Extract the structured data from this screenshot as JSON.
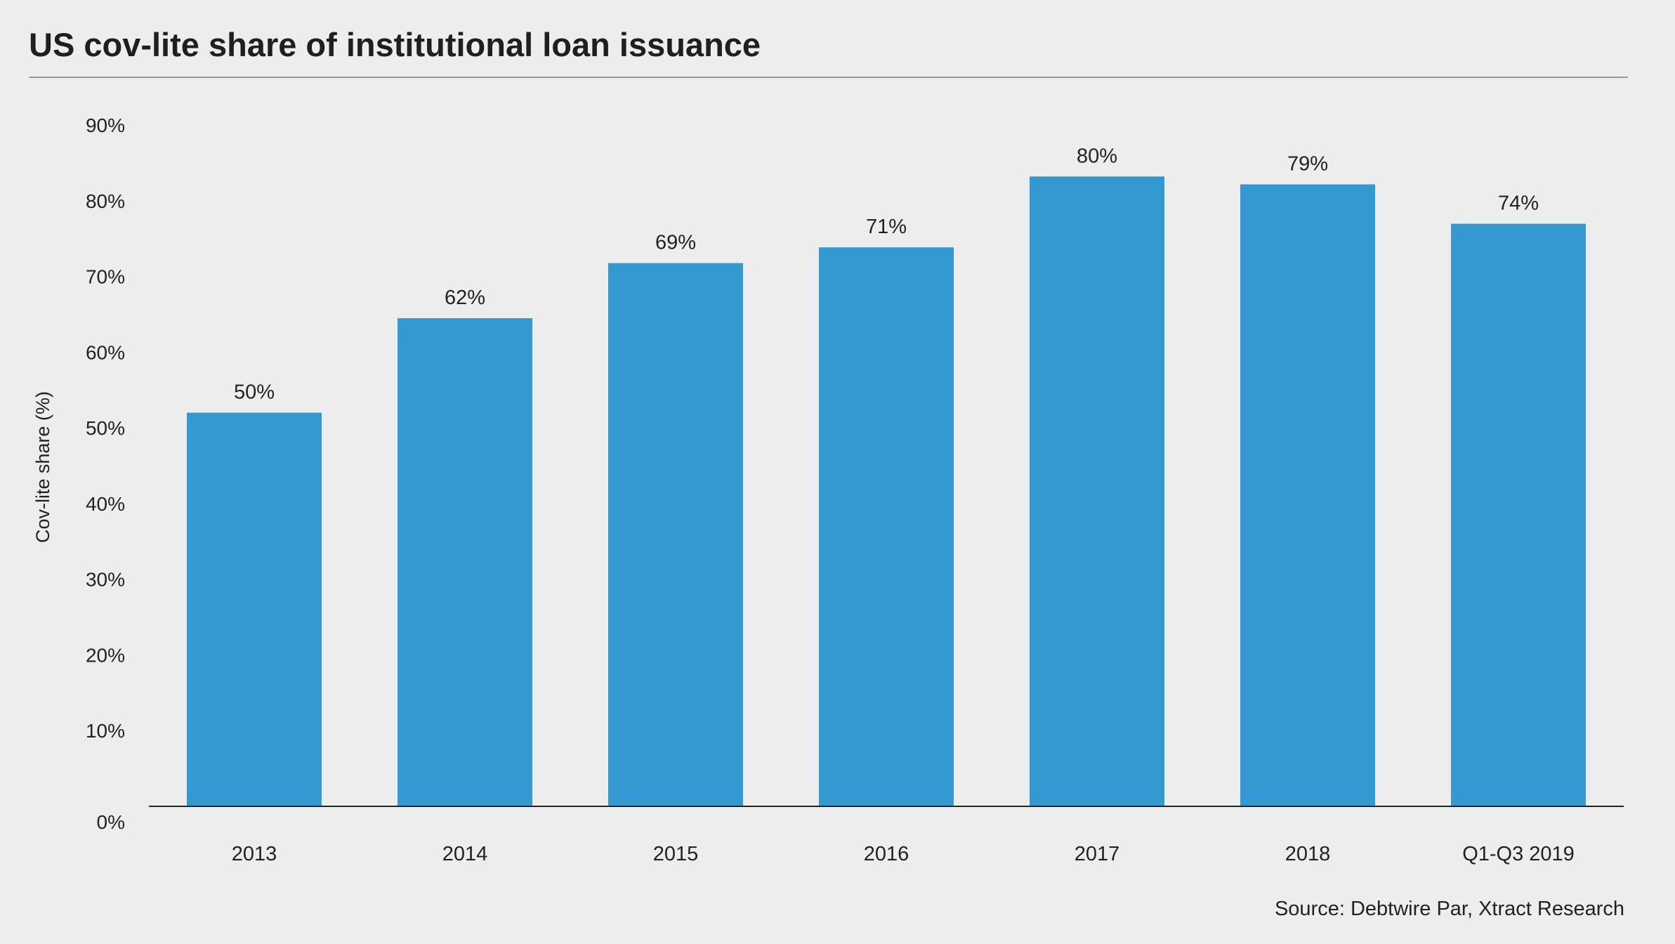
{
  "chart_data": {
    "type": "bar",
    "title": "US cov-lite share of institutional loan issuance",
    "ylabel": "Cov-lite share (%)",
    "xlabel": "",
    "categories": [
      "2013",
      "2014",
      "2015",
      "2016",
      "2017",
      "2018",
      "Q1-Q3 2019"
    ],
    "values": [
      50,
      62,
      69,
      71,
      80,
      79,
      74
    ],
    "data_labels": [
      "50%",
      "62%",
      "69%",
      "71%",
      "80%",
      "79%",
      "74%"
    ],
    "ylim": [
      0,
      90
    ],
    "yticks": [
      0,
      10,
      20,
      30,
      40,
      50,
      60,
      70,
      80,
      90
    ],
    "ytick_labels": [
      "0%",
      "10%",
      "20%",
      "30%",
      "40%",
      "50%",
      "60%",
      "70%",
      "80%",
      "90%"
    ],
    "grid": false,
    "legend": "none",
    "bar_color": "#3498d1",
    "source": "Source: Debtwire Par, Xtract Research"
  }
}
